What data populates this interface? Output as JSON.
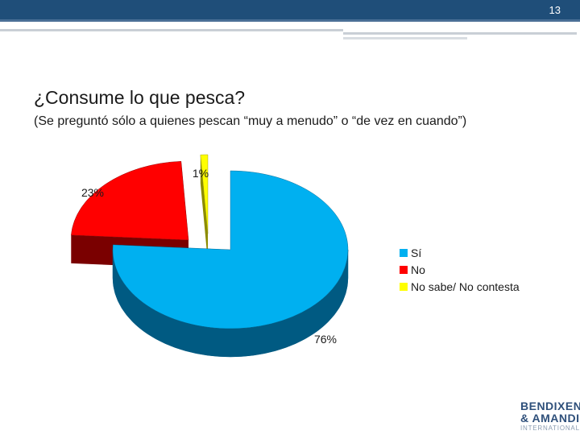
{
  "header": {
    "page_number": "13"
  },
  "slide": {
    "title": "¿Consume lo que pesca?",
    "subtitle": "(Se preguntó sólo a quienes pescan “muy a menudo” o “de vez en cuando”)"
  },
  "chart_data": {
    "type": "pie",
    "style": "3d-exploded",
    "categories": [
      "Sí",
      "No",
      "No sabe/ No contesta"
    ],
    "values": [
      76,
      23,
      1
    ],
    "value_labels": [
      "76%",
      "23%",
      "1%"
    ],
    "colors": [
      "#00b0f0",
      "#ff0000",
      "#ffff00"
    ],
    "side_colors": [
      "#005a82",
      "#7a0000",
      "#8c8c00"
    ],
    "legend_position": "right"
  },
  "legend": {
    "items": [
      {
        "label": "Sí",
        "color": "#00b0f0"
      },
      {
        "label": "No",
        "color": "#ff0000"
      },
      {
        "label": "No sabe/ No contesta",
        "color": "#ffff00"
      }
    ]
  },
  "logo": {
    "line1": "BENDIXEN",
    "line2": "& AMANDI",
    "line3": "INTERNATIONAL"
  }
}
